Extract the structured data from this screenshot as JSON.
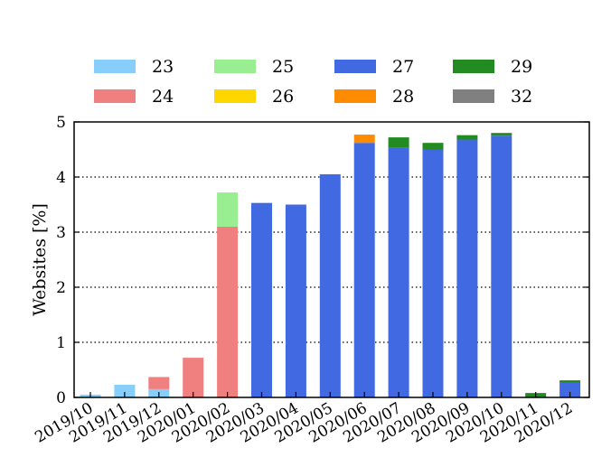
{
  "chart_data": {
    "type": "bar",
    "stacked": true,
    "ylabel": "Websites [%]",
    "xlabel": "",
    "title": "",
    "ylim": [
      0,
      5
    ],
    "yticks": [
      0,
      1,
      2,
      3,
      4,
      5
    ],
    "grid": "horizontal dotted",
    "legend_placement": "top",
    "categories": [
      "2019/10",
      "2019/11",
      "2019/12",
      "2020/01",
      "2020/02",
      "2020/03",
      "2020/04",
      "2020/05",
      "2020/06",
      "2020/07",
      "2020/08",
      "2020/09",
      "2020/10",
      "2020/11",
      "2020/12"
    ],
    "series": [
      {
        "name": "23",
        "color": "#87CEFA",
        "values": [
          0.05,
          0.23,
          0.15,
          0,
          0,
          0,
          0,
          0,
          0,
          0,
          0,
          0,
          0,
          0,
          0
        ]
      },
      {
        "name": "24",
        "color": "#F08080",
        "values": [
          0,
          0,
          0.22,
          0.72,
          3.1,
          0,
          0,
          0,
          0,
          0,
          0,
          0,
          0,
          0,
          0
        ]
      },
      {
        "name": "25",
        "color": "#98EE90",
        "values": [
          0,
          0,
          0,
          0,
          0.62,
          0,
          0,
          0,
          0,
          0,
          0,
          0,
          0,
          0,
          0
        ]
      },
      {
        "name": "26",
        "color": "#FFD700",
        "values": [
          0,
          0,
          0,
          0,
          0,
          0,
          0,
          0,
          0,
          0,
          0,
          0,
          0,
          0,
          0
        ]
      },
      {
        "name": "27",
        "color": "#4169E1",
        "values": [
          0,
          0,
          0,
          0,
          0,
          3.53,
          3.5,
          4.05,
          4.62,
          4.53,
          4.5,
          4.68,
          4.75,
          0,
          0.27
        ]
      },
      {
        "name": "28",
        "color": "#FF8C00",
        "values": [
          0,
          0,
          0,
          0,
          0,
          0,
          0,
          0,
          0.15,
          0,
          0,
          0,
          0,
          0,
          0
        ]
      },
      {
        "name": "29",
        "color": "#228B22",
        "values": [
          0,
          0,
          0,
          0,
          0,
          0,
          0,
          0,
          0,
          0.19,
          0.12,
          0.08,
          0.05,
          0.08,
          0.04
        ]
      },
      {
        "name": "32",
        "color": "#808080",
        "values": [
          0,
          0,
          0,
          0,
          0,
          0,
          0,
          0,
          0,
          0,
          0,
          0,
          0,
          0,
          0
        ]
      }
    ]
  }
}
